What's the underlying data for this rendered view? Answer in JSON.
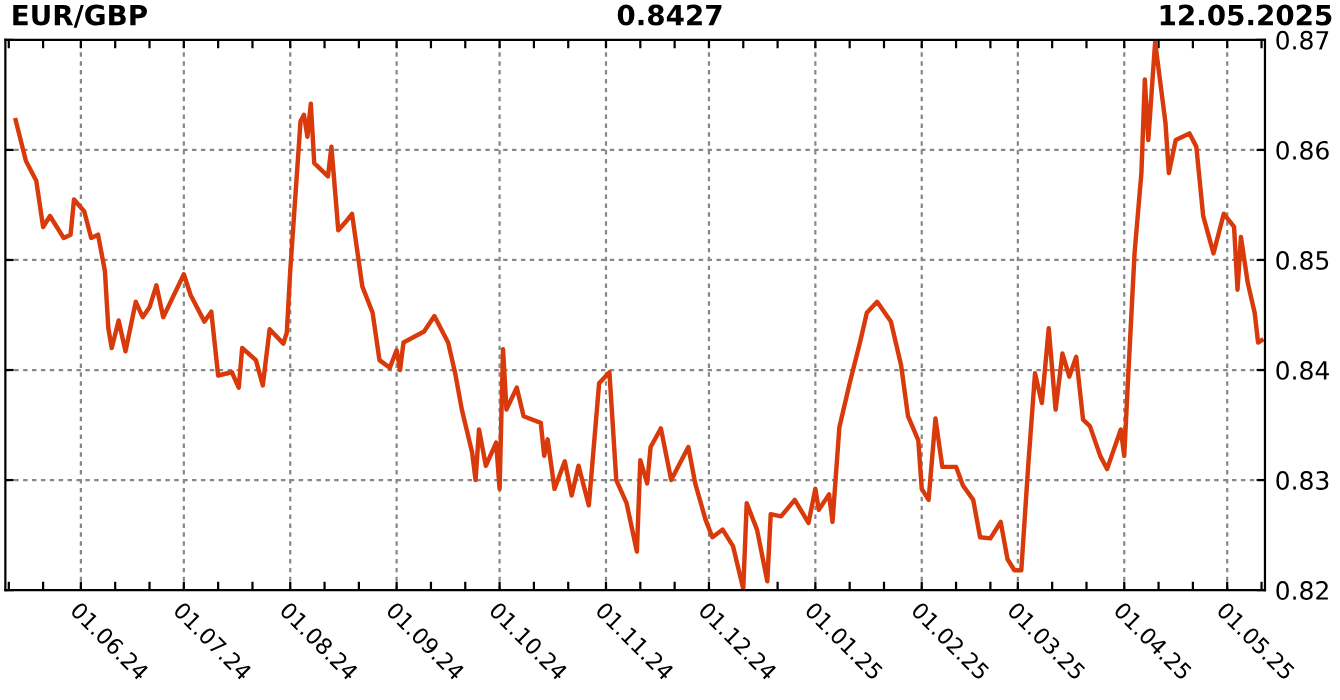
{
  "chart_data": {
    "type": "line",
    "title": "EUR/GBP",
    "subtitle": "0.8427",
    "annotations": [
      "12.05.2025"
    ],
    "x": [
      "2024-05-13",
      "2024-05-16",
      "2024-05-19",
      "2024-05-21",
      "2024-05-23",
      "2024-05-27",
      "2024-05-29",
      "2024-05-30",
      "2024-06-02",
      "2024-06-04",
      "2024-06-06",
      "2024-06-08",
      "2024-06-09",
      "2024-06-10",
      "2024-06-12",
      "2024-06-14",
      "2024-06-17",
      "2024-06-19",
      "2024-06-21",
      "2024-06-23",
      "2024-06-25",
      "2024-07-01",
      "2024-07-03",
      "2024-07-07",
      "2024-07-09",
      "2024-07-11",
      "2024-07-15",
      "2024-07-17",
      "2024-07-18",
      "2024-07-22",
      "2024-07-24",
      "2024-07-26",
      "2024-07-30",
      "2024-07-31",
      "2024-08-01",
      "2024-08-04",
      "2024-08-05",
      "2024-08-06",
      "2024-08-07",
      "2024-08-08",
      "2024-08-12",
      "2024-08-13",
      "2024-08-15",
      "2024-08-17",
      "2024-08-19",
      "2024-08-22",
      "2024-08-25",
      "2024-08-27",
      "2024-08-30",
      "2024-09-01",
      "2024-09-02",
      "2024-09-03",
      "2024-09-09",
      "2024-09-12",
      "2024-09-16",
      "2024-09-18",
      "2024-09-20",
      "2024-09-23",
      "2024-09-24",
      "2024-09-25",
      "2024-09-27",
      "2024-09-30",
      "2024-10-01",
      "2024-10-02",
      "2024-10-03",
      "2024-10-06",
      "2024-10-08",
      "2024-10-13",
      "2024-10-14",
      "2024-10-15",
      "2024-10-17",
      "2024-10-20",
      "2024-10-22",
      "2024-10-24",
      "2024-10-27",
      "2024-10-30",
      "2024-11-02",
      "2024-11-04",
      "2024-11-07",
      "2024-11-10",
      "2024-11-11",
      "2024-11-13",
      "2024-11-14",
      "2024-11-17",
      "2024-11-20",
      "2024-11-25",
      "2024-11-27",
      "2024-11-30",
      "2024-12-02",
      "2024-12-05",
      "2024-12-08",
      "2024-12-11",
      "2024-12-12",
      "2024-12-15",
      "2024-12-18",
      "2024-12-19",
      "2024-12-22",
      "2024-12-26",
      "2024-12-30",
      "2025-01-01",
      "2025-01-02",
      "2025-01-05",
      "2025-01-06",
      "2025-01-08",
      "2025-01-11",
      "2025-01-14",
      "2025-01-16",
      "2025-01-19",
      "2025-01-23",
      "2025-01-26",
      "2025-01-28",
      "2025-01-31",
      "2025-02-01",
      "2025-02-03",
      "2025-02-05",
      "2025-02-07",
      "2025-02-11",
      "2025-02-13",
      "2025-02-16",
      "2025-02-18",
      "2025-02-21",
      "2025-02-24",
      "2025-02-26",
      "2025-02-28",
      "2025-03-02",
      "2025-03-04",
      "2025-03-06",
      "2025-03-08",
      "2025-03-10",
      "2025-03-12",
      "2025-03-14",
      "2025-03-16",
      "2025-03-18",
      "2025-03-20",
      "2025-03-22",
      "2025-03-25",
      "2025-03-27",
      "2025-03-31",
      "2025-04-01",
      "2025-04-02",
      "2025-04-04",
      "2025-04-06",
      "2025-04-07",
      "2025-04-08",
      "2025-04-10",
      "2025-04-13",
      "2025-04-14",
      "2025-04-16",
      "2025-04-20",
      "2025-04-22",
      "2025-04-24",
      "2025-04-27",
      "2025-04-30",
      "2025-05-03",
      "2025-05-04",
      "2025-05-05",
      "2025-05-07",
      "2025-05-09",
      "2025-05-10",
      "2025-05-11"
    ],
    "series": [
      {
        "color": "#d93a0b",
        "values": [
          0.8627,
          0.859,
          0.8572,
          0.853,
          0.854,
          0.852,
          0.8523,
          0.8555,
          0.8544,
          0.852,
          0.8523,
          0.849,
          0.8438,
          0.842,
          0.8445,
          0.8417,
          0.8462,
          0.8448,
          0.8457,
          0.8477,
          0.8448,
          0.8487,
          0.8468,
          0.8444,
          0.8453,
          0.8395,
          0.8398,
          0.8384,
          0.842,
          0.8409,
          0.8386,
          0.8437,
          0.8424,
          0.8434,
          0.849,
          0.8626,
          0.8632,
          0.8612,
          0.8642,
          0.8588,
          0.8576,
          0.8603,
          0.8527,
          0.8534,
          0.8542,
          0.8476,
          0.8452,
          0.8409,
          0.8402,
          0.8418,
          0.84,
          0.8425,
          0.8435,
          0.8449,
          0.8425,
          0.8398,
          0.8364,
          0.8325,
          0.83,
          0.8346,
          0.8313,
          0.8334,
          0.8292,
          0.8419,
          0.8364,
          0.8384,
          0.8358,
          0.8352,
          0.8322,
          0.8337,
          0.8292,
          0.8317,
          0.8286,
          0.8313,
          0.8277,
          0.8388,
          0.8398,
          0.83,
          0.8279,
          0.8235,
          0.8318,
          0.8297,
          0.833,
          0.8347,
          0.83,
          0.833,
          0.8297,
          0.8264,
          0.8248,
          0.8255,
          0.824,
          0.8201,
          0.8279,
          0.8255,
          0.8208,
          0.8269,
          0.8267,
          0.8282,
          0.8261,
          0.8292,
          0.8273,
          0.8287,
          0.8262,
          0.8348,
          0.8388,
          0.8425,
          0.8452,
          0.8462,
          0.8444,
          0.8404,
          0.8358,
          0.8336,
          0.8292,
          0.8282,
          0.8356,
          0.8312,
          0.8312,
          0.8295,
          0.8282,
          0.8248,
          0.8247,
          0.8262,
          0.8228,
          0.8218,
          0.8218,
          0.8312,
          0.8397,
          0.837,
          0.8438,
          0.8364,
          0.8415,
          0.8394,
          0.8412,
          0.8355,
          0.8349,
          0.8322,
          0.831,
          0.8346,
          0.8322,
          0.8385,
          0.8506,
          0.8579,
          0.8664,
          0.8609,
          0.8698,
          0.8625,
          0.8579,
          0.8609,
          0.8615,
          0.8603,
          0.854,
          0.8506,
          0.8542,
          0.853,
          0.8473,
          0.8521,
          0.8479,
          0.8452,
          0.8425,
          0.8427
        ]
      }
    ],
    "xlim": [
      "2024-05-10",
      "2025-05-12"
    ],
    "xticks": [
      {
        "value": "2024-05-11",
        "label": null
      },
      {
        "value": "2024-05-21",
        "label": null
      },
      {
        "value": "2024-06-01",
        "label": "01.06.24"
      },
      {
        "value": "2024-06-11",
        "label": null
      },
      {
        "value": "2024-06-21",
        "label": null
      },
      {
        "value": "2024-07-01",
        "label": "01.07.24"
      },
      {
        "value": "2024-07-11",
        "label": null
      },
      {
        "value": "2024-07-21",
        "label": null
      },
      {
        "value": "2024-08-01",
        "label": "01.08.24"
      },
      {
        "value": "2024-08-11",
        "label": null
      },
      {
        "value": "2024-08-21",
        "label": null
      },
      {
        "value": "2024-09-01",
        "label": "01.09.24"
      },
      {
        "value": "2024-09-11",
        "label": null
      },
      {
        "value": "2024-09-21",
        "label": null
      },
      {
        "value": "2024-10-01",
        "label": "01.10.24"
      },
      {
        "value": "2024-10-11",
        "label": null
      },
      {
        "value": "2024-10-21",
        "label": null
      },
      {
        "value": "2024-11-01",
        "label": "01.11.24"
      },
      {
        "value": "2024-11-11",
        "label": null
      },
      {
        "value": "2024-11-21",
        "label": null
      },
      {
        "value": "2024-12-01",
        "label": "01.12.24"
      },
      {
        "value": "2024-12-11",
        "label": null
      },
      {
        "value": "2024-12-21",
        "label": null
      },
      {
        "value": "2025-01-01",
        "label": "01.01.25"
      },
      {
        "value": "2025-01-11",
        "label": null
      },
      {
        "value": "2025-01-21",
        "label": null
      },
      {
        "value": "2025-02-01",
        "label": "01.02.25"
      },
      {
        "value": "2025-02-11",
        "label": null
      },
      {
        "value": "2025-02-21",
        "label": null
      },
      {
        "value": "2025-03-01",
        "label": "01.03.25"
      },
      {
        "value": "2025-03-11",
        "label": null
      },
      {
        "value": "2025-03-21",
        "label": null
      },
      {
        "value": "2025-04-01",
        "label": "01.04.25"
      },
      {
        "value": "2025-04-11",
        "label": null
      },
      {
        "value": "2025-04-21",
        "label": null
      },
      {
        "value": "2025-05-01",
        "label": "01.05.25"
      },
      {
        "value": "2025-05-11",
        "label": null
      }
    ],
    "ylim": [
      0.82,
      0.87
    ],
    "yticks": [
      {
        "value": 0.82,
        "label": "0.82"
      },
      {
        "value": 0.83,
        "label": "0.83"
      },
      {
        "value": 0.84,
        "label": "0.84"
      },
      {
        "value": 0.85,
        "label": "0.85"
      },
      {
        "value": 0.86,
        "label": "0.86"
      },
      {
        "value": 0.87,
        "label": "0.87"
      }
    ],
    "grid": true,
    "line_style": "solid",
    "marker": "none"
  }
}
